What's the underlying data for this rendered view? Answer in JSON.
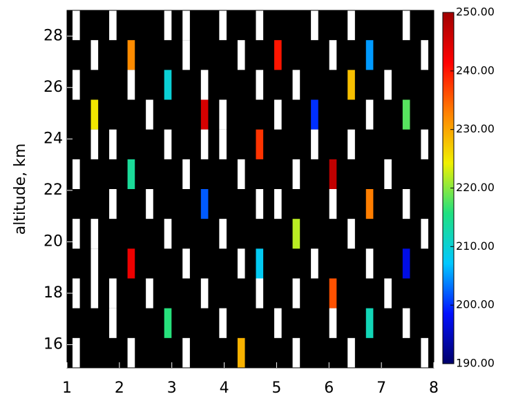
{
  "chart_data": {
    "type": "heatmap",
    "y_label": "altitude, km",
    "xlim": [
      1,
      8
    ],
    "ylim": [
      15.1,
      29.0
    ],
    "xticks": [
      1,
      2,
      3,
      4,
      5,
      6,
      7,
      8
    ],
    "yticks": [
      16,
      18,
      20,
      22,
      24,
      26,
      28
    ],
    "clim": [
      190,
      250
    ],
    "cticks": [
      {
        "value": 190,
        "label": "190.00"
      },
      {
        "value": 200,
        "label": "200.00"
      },
      {
        "value": 210,
        "label": "210.00"
      },
      {
        "value": 220,
        "label": "220.00"
      },
      {
        "value": 230,
        "label": "230.00"
      },
      {
        "value": 240,
        "label": "240.00"
      },
      {
        "value": 250,
        "label": "250.00"
      }
    ],
    "colormap": [
      "#00006a",
      "#0010ff",
      "#00c8ff",
      "#20e080",
      "#f0f000",
      "#ff8000",
      "#ff0000",
      "#a00000"
    ],
    "missing_color": "#000000",
    "over_color": "#ffffff",
    "z": [
      [
        255,
        null,
        255,
        null,
        null,
        255,
        255,
        null,
        255,
        null,
        255,
        null,
        null,
        255,
        null,
        255,
        null,
        null,
        255,
        null
      ],
      [
        null,
        255,
        null,
        232,
        null,
        null,
        255,
        null,
        null,
        255,
        null,
        240,
        null,
        null,
        255,
        null,
        205,
        null,
        null,
        255
      ],
      [
        255,
        null,
        null,
        255,
        null,
        210,
        null,
        255,
        null,
        null,
        255,
        null,
        255,
        null,
        null,
        228,
        null,
        255,
        null,
        null
      ],
      [
        null,
        225,
        null,
        null,
        255,
        null,
        null,
        245,
        255,
        null,
        null,
        255,
        null,
        200,
        null,
        null,
        255,
        null,
        218,
        null
      ],
      [
        null,
        255,
        255,
        null,
        null,
        255,
        null,
        255,
        255,
        null,
        238,
        null,
        null,
        255,
        null,
        255,
        null,
        null,
        null,
        255
      ],
      [
        255,
        null,
        null,
        214,
        null,
        null,
        255,
        null,
        null,
        255,
        null,
        null,
        255,
        null,
        247,
        null,
        null,
        255,
        null,
        null
      ],
      [
        null,
        null,
        255,
        null,
        255,
        null,
        null,
        202,
        null,
        null,
        255,
        255,
        null,
        null,
        255,
        null,
        233,
        null,
        255,
        null
      ],
      [
        255,
        255,
        null,
        null,
        null,
        255,
        null,
        null,
        255,
        null,
        null,
        null,
        222,
        null,
        null,
        255,
        null,
        null,
        null,
        255
      ],
      [
        null,
        255,
        null,
        243,
        null,
        null,
        255,
        null,
        null,
        255,
        208,
        null,
        null,
        255,
        null,
        null,
        255,
        null,
        197,
        null
      ],
      [
        255,
        255,
        255,
        null,
        255,
        null,
        null,
        255,
        null,
        null,
        255,
        null,
        255,
        null,
        236,
        null,
        null,
        255,
        null,
        null
      ],
      [
        null,
        null,
        255,
        null,
        null,
        216,
        null,
        null,
        255,
        null,
        null,
        255,
        null,
        null,
        255,
        null,
        212,
        null,
        255,
        null
      ],
      [
        255,
        null,
        null,
        255,
        null,
        null,
        255,
        null,
        null,
        229,
        null,
        null,
        255,
        null,
        null,
        255,
        null,
        null,
        null,
        255
      ]
    ]
  }
}
